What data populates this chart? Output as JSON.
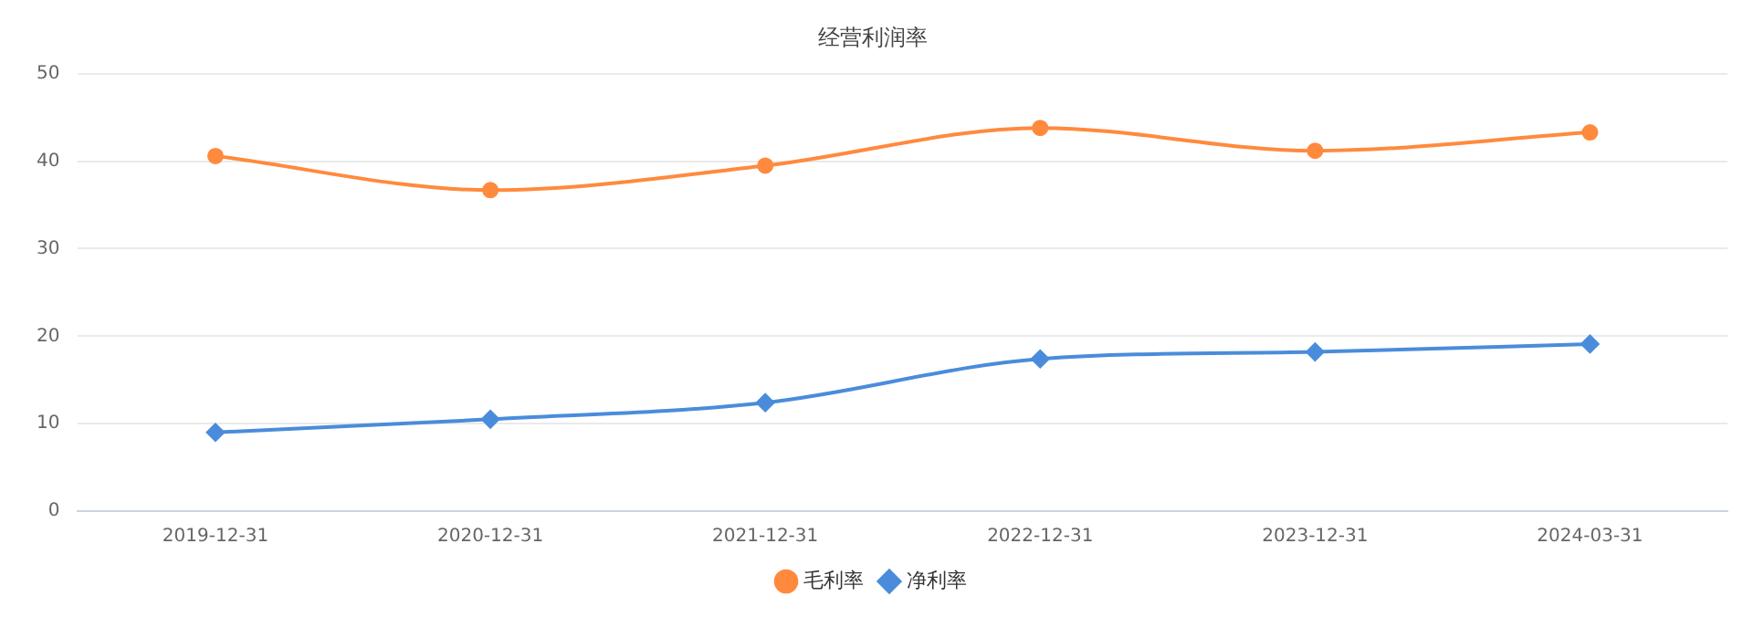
{
  "chart_data": {
    "type": "line",
    "title": "经营利润率",
    "categories": [
      "2019-12-31",
      "2020-12-31",
      "2021-12-31",
      "2022-12-31",
      "2023-12-31",
      "2024-03-31"
    ],
    "series": [
      {
        "name": "毛利率",
        "color": "#ff8a3d",
        "marker": "circle",
        "values": [
          40.6,
          36.7,
          39.5,
          43.8,
          41.2,
          43.3
        ]
      },
      {
        "name": "净利率",
        "color": "#4a8cdb",
        "marker": "diamond",
        "values": [
          9.0,
          10.5,
          12.4,
          17.4,
          18.2,
          19.1
        ]
      }
    ],
    "ylim": [
      0,
      50
    ],
    "yticks": [
      0,
      10,
      20,
      30,
      40,
      50
    ],
    "grid": "y",
    "legend": "bottom"
  }
}
